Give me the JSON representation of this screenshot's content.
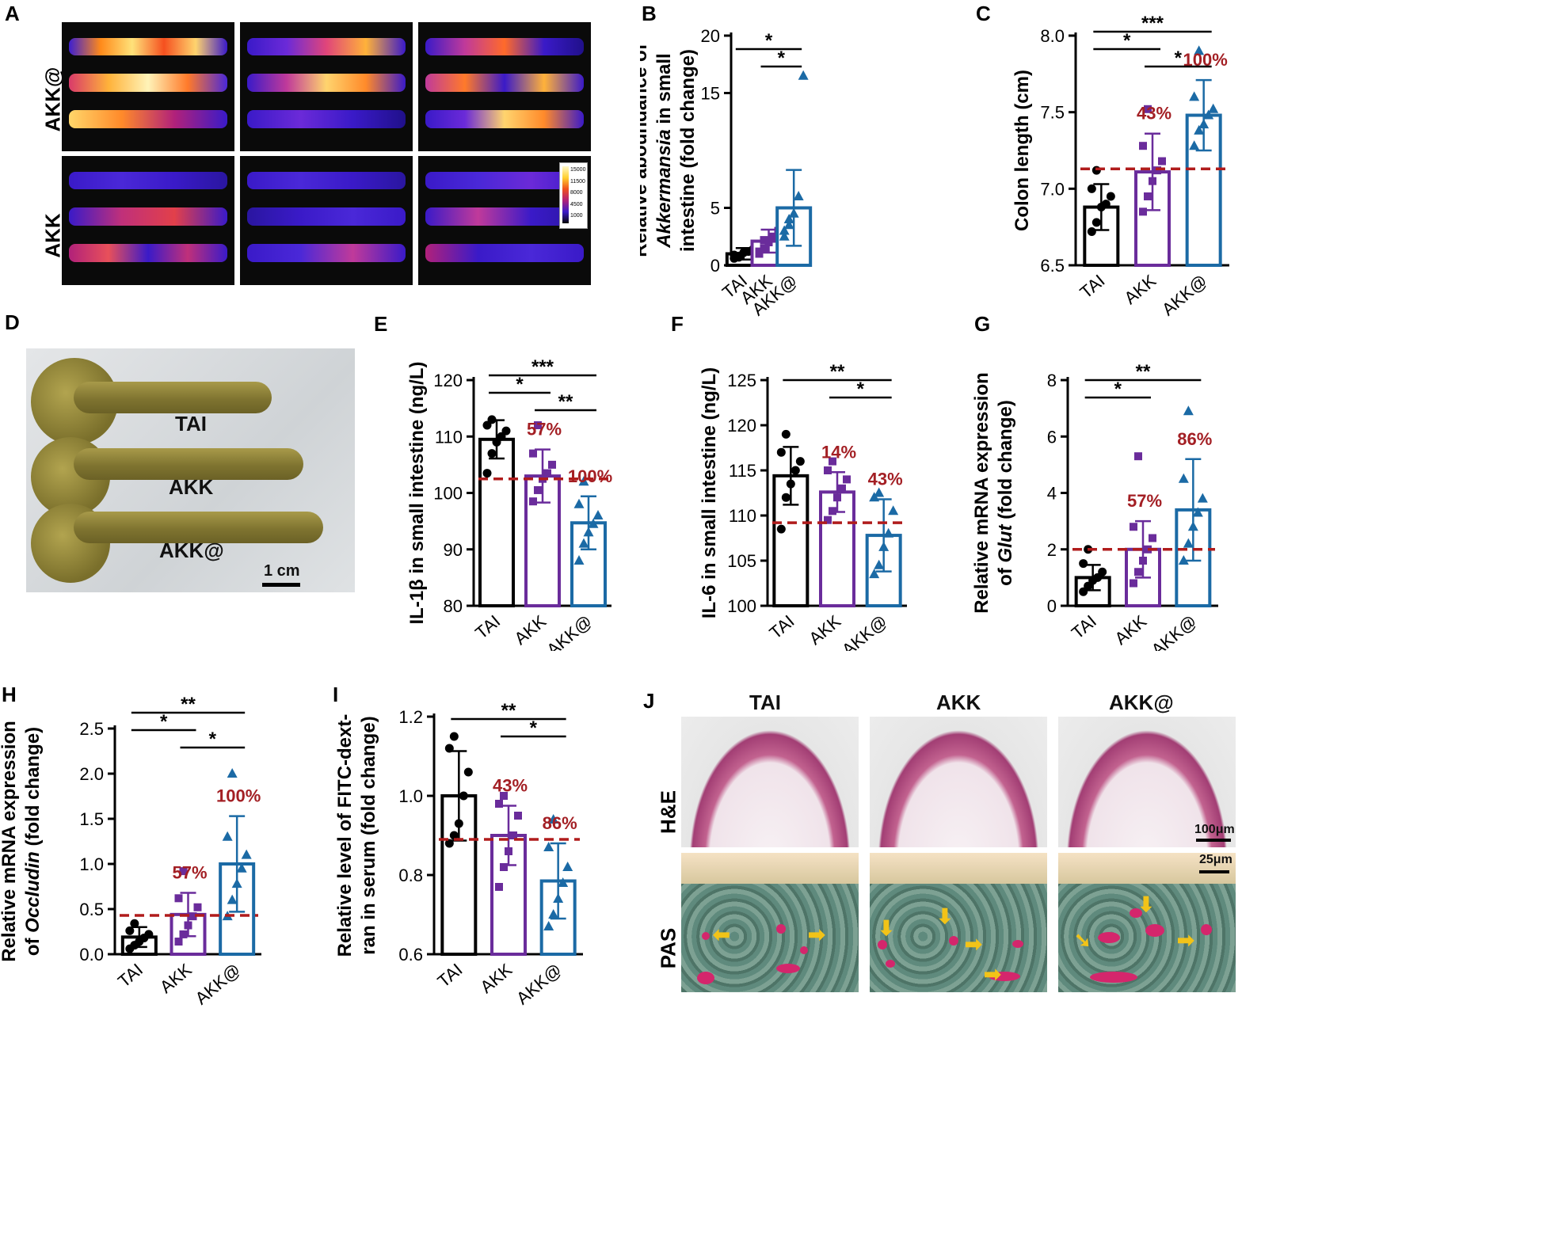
{
  "panels": {
    "A": {
      "letter": "A",
      "rows": [
        "AKK@",
        "AKK"
      ],
      "colorbar_ticks": [
        "15000",
        "11500",
        "8000",
        "4500",
        "1000"
      ]
    },
    "D": {
      "letter": "D",
      "labels": [
        "TAI",
        "AKK",
        "AKK@"
      ],
      "scalebar": "1 cm"
    },
    "J": {
      "letter": "J",
      "columns": [
        "TAI",
        "AKK",
        "AKK@"
      ],
      "rows": [
        "H&E",
        "PAS"
      ],
      "scalebars": [
        "100μm",
        "25μm"
      ]
    }
  },
  "chart_data": [
    {
      "id": "B",
      "letter": "B",
      "type": "bar",
      "categories": [
        "TAI",
        "AKK",
        "AKK@"
      ],
      "ylabel_lines": [
        [
          "Relative aboundance  of"
        ],
        [
          "Akkermansia",
          " in small"
        ],
        [
          "intestine (fold change)"
        ]
      ],
      "ylim": [
        0,
        20
      ],
      "yticks": [
        0,
        5,
        15,
        20
      ],
      "means": [
        1.0,
        2.1,
        5.0
      ],
      "sd": [
        0.5,
        1.0,
        3.3
      ],
      "points": [
        [
          0.6,
          0.8,
          1.1,
          1.2,
          1.4,
          0.9,
          0.7
        ],
        [
          1.0,
          1.5,
          2.0,
          2.5,
          3.0,
          1.2,
          2.2
        ],
        [
          2.5,
          3.5,
          4.5,
          6.0,
          16.5,
          3.0,
          4.0
        ]
      ],
      "dashed": null,
      "percents": [
        null,
        null,
        null
      ],
      "sig": [
        {
          "from": 0,
          "to": 2,
          "label": "*"
        },
        {
          "from": 1,
          "to": 2,
          "label": "*"
        }
      ]
    },
    {
      "id": "C",
      "letter": "C",
      "type": "bar",
      "categories": [
        "TAI",
        "AKK",
        "AKK@"
      ],
      "ylabel_lines": [
        [
          "Colon length (cm)"
        ]
      ],
      "ylim": [
        6.5,
        8.0
      ],
      "yticks": [
        6.5,
        7.0,
        7.5,
        8.0
      ],
      "means": [
        6.88,
        7.11,
        7.48
      ],
      "sd": [
        0.15,
        0.25,
        0.23
      ],
      "points": [
        [
          6.72,
          6.78,
          6.88,
          6.9,
          6.95,
          7.0,
          7.12
        ],
        [
          6.85,
          6.95,
          7.05,
          7.12,
          7.18,
          7.28,
          7.52
        ],
        [
          7.28,
          7.38,
          7.42,
          7.48,
          7.52,
          7.6,
          7.9
        ]
      ],
      "dashed": 7.13,
      "percents": [
        null,
        "43%",
        "100%"
      ],
      "sig": [
        {
          "from": 0,
          "to": 2,
          "label": "***"
        },
        {
          "from": 0,
          "to": 1,
          "label": "*"
        },
        {
          "from": 1,
          "to": 2,
          "label": "*"
        }
      ]
    },
    {
      "id": "E",
      "letter": "E",
      "type": "bar",
      "categories": [
        "TAI",
        "AKK",
        "AKK@"
      ],
      "ylabel_lines": [
        [
          "IL-1β in small intestine (ng/L)"
        ]
      ],
      "ylim": [
        80,
        120
      ],
      "yticks": [
        80,
        90,
        100,
        110,
        120
      ],
      "means": [
        109.5,
        103.0,
        94.7
      ],
      "sd": [
        3.4,
        4.7,
        4.7
      ],
      "points": [
        [
          103.5,
          107.0,
          109.0,
          110.0,
          111.0,
          112.0,
          113.0
        ],
        [
          98.5,
          100.5,
          102.5,
          103.5,
          105.0,
          107.0,
          112.0
        ],
        [
          88.0,
          91.0,
          93.0,
          94.5,
          96.0,
          98.0,
          102.0
        ]
      ],
      "dashed": 102.5,
      "percents": [
        null,
        "57%",
        "100%"
      ],
      "sig": [
        {
          "from": 0,
          "to": 2,
          "label": "***"
        },
        {
          "from": 0,
          "to": 1,
          "label": "*"
        },
        {
          "from": 1,
          "to": 2,
          "label": "**"
        }
      ]
    },
    {
      "id": "F",
      "letter": "F",
      "type": "bar",
      "categories": [
        "TAI",
        "AKK",
        "AKK@"
      ],
      "ylabel_lines": [
        [
          "IL-6 in small intestine (ng/L)"
        ]
      ],
      "ylim": [
        100,
        125
      ],
      "yticks": [
        100,
        105,
        110,
        115,
        120,
        125
      ],
      "means": [
        114.4,
        112.6,
        107.8
      ],
      "sd": [
        3.2,
        2.2,
        4.0
      ],
      "points": [
        [
          108.5,
          112.0,
          113.5,
          115.0,
          116.0,
          117.0,
          119.0
        ],
        [
          109.5,
          110.5,
          112.0,
          113.0,
          114.0,
          115.0,
          116.0
        ],
        [
          103.5,
          104.5,
          106.5,
          108.0,
          110.5,
          112.0,
          112.5
        ]
      ],
      "dashed": 109.2,
      "percents": [
        null,
        "14%",
        "43%"
      ],
      "sig": [
        {
          "from": 0,
          "to": 2,
          "label": "**"
        },
        {
          "from": 1,
          "to": 2,
          "label": "*"
        }
      ]
    },
    {
      "id": "G",
      "letter": "G",
      "type": "bar",
      "categories": [
        "TAI",
        "AKK",
        "AKK@"
      ],
      "ylabel_lines": [
        [
          "Relative mRNA expression"
        ],
        [
          "of ",
          "Glut",
          " (fold change)"
        ]
      ],
      "ylim": [
        0,
        8
      ],
      "yticks": [
        0,
        2,
        4,
        6,
        8
      ],
      "means": [
        1.0,
        2.0,
        3.4
      ],
      "sd": [
        0.45,
        1.0,
        1.8
      ],
      "points": [
        [
          0.5,
          0.7,
          0.9,
          1.0,
          1.2,
          1.5,
          2.0
        ],
        [
          0.8,
          1.2,
          1.6,
          2.0,
          2.4,
          2.8,
          5.3
        ],
        [
          1.6,
          2.2,
          2.8,
          3.3,
          3.8,
          4.5,
          6.9
        ]
      ],
      "dashed": 2.0,
      "percents": [
        null,
        "57%",
        "86%"
      ],
      "sig": [
        {
          "from": 0,
          "to": 2,
          "label": "**"
        },
        {
          "from": 0,
          "to": 1,
          "label": "*"
        }
      ]
    },
    {
      "id": "H",
      "letter": "H",
      "type": "bar",
      "categories": [
        "TAI",
        "AKK",
        "AKK@"
      ],
      "ylabel_lines": [
        [
          "Relative mRNA expression"
        ],
        [
          "of ",
          "Occludin",
          " (fold change)"
        ]
      ],
      "ylim": [
        0,
        2.5
      ],
      "yticks": [
        0.0,
        0.5,
        1.0,
        1.5,
        2.0,
        2.5
      ],
      "means": [
        0.19,
        0.44,
        1.0
      ],
      "sd": [
        0.11,
        0.24,
        0.53
      ],
      "points": [
        [
          0.06,
          0.1,
          0.14,
          0.18,
          0.22,
          0.26,
          0.34
        ],
        [
          0.14,
          0.22,
          0.32,
          0.42,
          0.52,
          0.62,
          0.92
        ],
        [
          0.42,
          0.6,
          0.78,
          0.95,
          1.1,
          1.3,
          2.0
        ]
      ],
      "dashed": 0.43,
      "percents": [
        null,
        "57%",
        "100%"
      ],
      "sig": [
        {
          "from": 0,
          "to": 2,
          "label": "**"
        },
        {
          "from": 0,
          "to": 1,
          "label": "*"
        },
        {
          "from": 1,
          "to": 2,
          "label": "*"
        }
      ]
    },
    {
      "id": "I",
      "letter": "I",
      "type": "bar",
      "categories": [
        "TAI",
        "AKK",
        "AKK@"
      ],
      "ylabel_lines": [
        [
          "Relative level of FITC-dext-"
        ],
        [
          "ran in serum (fold change)"
        ]
      ],
      "ylim": [
        0.6,
        1.2
      ],
      "yticks": [
        0.6,
        0.8,
        1.0,
        1.2
      ],
      "means": [
        1.0,
        0.9,
        0.785
      ],
      "sd": [
        0.113,
        0.075,
        0.095
      ],
      "points": [
        [
          0.88,
          0.9,
          0.93,
          1.0,
          1.06,
          1.12,
          1.15
        ],
        [
          0.77,
          0.82,
          0.86,
          0.9,
          0.95,
          0.98,
          1.0
        ],
        [
          0.67,
          0.7,
          0.74,
          0.78,
          0.82,
          0.87,
          0.94
        ]
      ],
      "dashed": 0.89,
      "percents": [
        null,
        "43%",
        "86%"
      ],
      "sig": [
        {
          "from": 0,
          "to": 2,
          "label": "**"
        },
        {
          "from": 1,
          "to": 2,
          "label": "*"
        }
      ]
    }
  ],
  "style": {
    "colors": [
      "#000000",
      "#6a2c9b",
      "#1b6aa5"
    ],
    "dashed_color": "#b01c1c",
    "percent_color": "#a31f24",
    "markers": [
      "circle",
      "square",
      "triangle"
    ]
  }
}
